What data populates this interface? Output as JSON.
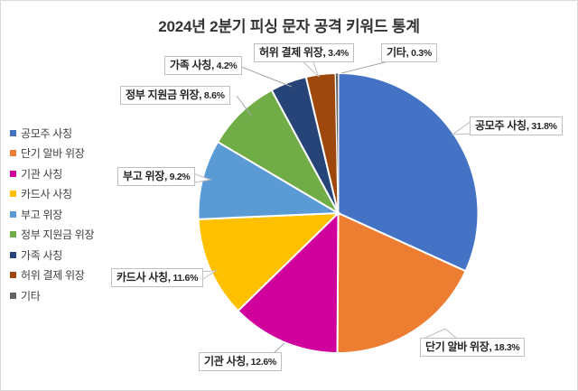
{
  "title": "2024년 2분기 피싱 문자 공격 키워드 통계",
  "chart_data": {
    "type": "pie",
    "title": "2024년 2분기 피싱 문자 공격 키워드 통계",
    "unit": "%",
    "start_angle_deg": 0,
    "direction": "clockwise",
    "legend_position": "left",
    "label_format": "name, value%",
    "border_color_between_slices": "#ffffff",
    "callout_border_color": "#bfbfbf",
    "slices": [
      {
        "name": "공모주 사칭",
        "value": 31.8,
        "color": "#4472C4"
      },
      {
        "name": "단기 알바 위장",
        "value": 18.3,
        "color": "#ED7D31"
      },
      {
        "name": "기관 사칭",
        "value": 12.6,
        "color": "#D0009C"
      },
      {
        "name": "카드사 사칭",
        "value": 11.6,
        "color": "#FFC000"
      },
      {
        "name": "부고 위장",
        "value": 9.2,
        "color": "#5B9BD5"
      },
      {
        "name": "정부 지원금 위장",
        "value": 8.6,
        "color": "#70AD47"
      },
      {
        "name": "가족 사칭",
        "value": 4.2,
        "color": "#264478"
      },
      {
        "name": "허위 결제 위장",
        "value": 3.4,
        "color": "#9E480E"
      },
      {
        "name": "기타",
        "value": 0.3,
        "color": "#636363"
      }
    ]
  }
}
